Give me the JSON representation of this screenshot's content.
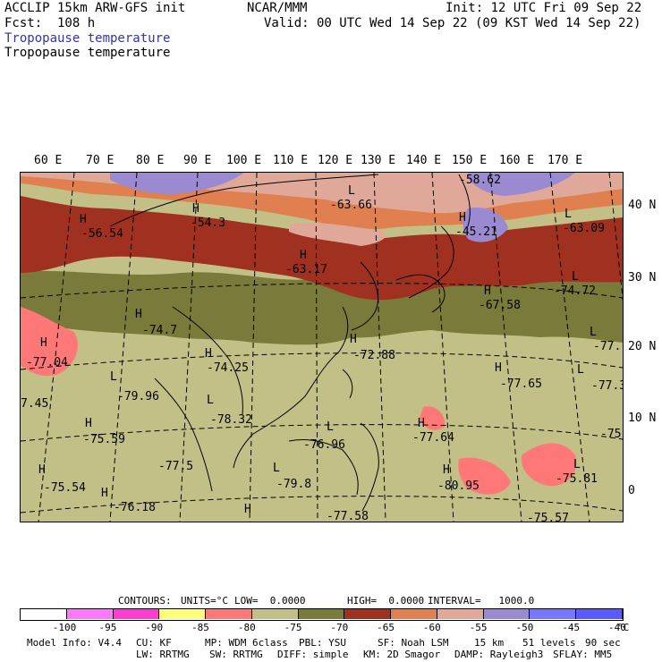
{
  "header": {
    "model_line": "ACCLIP 15km ARW-GFS init",
    "fcst_line": "Fcst:  108 h",
    "center": "NCAR/MMM",
    "init": "Init: 12 UTC Fri 09 Sep 22",
    "valid": "Valid: 00 UTC Wed 14 Sep 22 (09 KST Wed 14 Sep 22)",
    "field_shaded": "Tropopause temperature",
    "field_contour": "Tropopause temperature"
  },
  "map": {
    "lon_labels": [
      "60 E",
      "70 E",
      "80 E",
      "90 E",
      "100 E",
      "110 E",
      "120 E",
      "130 E",
      "140 E",
      "150 E",
      "160 E",
      "170 E"
    ],
    "lat_labels": [
      "40 N",
      "30 N",
      "20 N",
      "10 N",
      "0"
    ],
    "pressure_centers": [
      {
        "type": "H",
        "value": "-56.54"
      },
      {
        "type": "H",
        "value": "-54.3"
      },
      {
        "type": "L",
        "value": "-63.66"
      },
      {
        "type": "",
        "value": "-58.62"
      },
      {
        "type": "H",
        "value": "-45.21"
      },
      {
        "type": "L",
        "value": "-63.09"
      },
      {
        "type": "H",
        "value": "-63.17"
      },
      {
        "type": "H",
        "value": "-67.58"
      },
      {
        "type": "L",
        "value": "-74.72"
      },
      {
        "type": "H",
        "value": "-74.7"
      },
      {
        "type": "H",
        "value": "-77.04"
      },
      {
        "type": "H",
        "value": "-74.25"
      },
      {
        "type": "H",
        "value": "-72.88"
      },
      {
        "type": "L",
        "value": "-77."
      },
      {
        "type": "L",
        "value": "-79.96"
      },
      {
        "type": "H",
        "value": "-77.65"
      },
      {
        "type": "L",
        "value": "-77.3"
      },
      {
        "type": "",
        "value": "7.45"
      },
      {
        "type": "L",
        "value": "-78.32"
      },
      {
        "type": "H",
        "value": "-75.59"
      },
      {
        "type": "L",
        "value": "-76.96"
      },
      {
        "type": "H",
        "value": "-77.64"
      },
      {
        "type": "",
        "value": "-75"
      },
      {
        "type": "",
        "value": "-77.5"
      },
      {
        "type": "H",
        "value": "-75.54"
      },
      {
        "type": "L",
        "value": "-79.8"
      },
      {
        "type": "H",
        "value": "-80.95"
      },
      {
        "type": "L",
        "value": "-75.81"
      },
      {
        "type": "H",
        "value": "-76.18"
      },
      {
        "type": "H",
        "value": "-77.58"
      },
      {
        "type": "",
        "value": "-75.57"
      }
    ]
  },
  "contours_line": {
    "contours": "CONTOURS:",
    "units": "UNITS=°C",
    "low": "LOW=  0.0000",
    "high": "HIGH=  0.0000",
    "interval": "INTERVAL=   1000.0"
  },
  "colorbar": {
    "colors": [
      "#ffffff",
      "#ff78ff",
      "#ff3cd2",
      "#ffff78",
      "#ff7878",
      "#c2c087",
      "#7a7a3a",
      "#a03020",
      "#e08050",
      "#e0a898",
      "#9a8ad2",
      "#7878ff",
      "#5a5aff"
    ],
    "tick_labels": [
      "-100",
      "-95",
      "-90",
      "-85",
      "-80",
      "-75",
      "-70",
      "-65",
      "-60",
      "-55",
      "-50",
      "-45",
      "-40"
    ],
    "unit": "°C"
  },
  "footer": {
    "line1": [
      "Model Info: V4.4",
      "CU: KF",
      "MP: WDM 6class",
      "PBL: YSU",
      "SF: Noah LSM",
      "15 km",
      "51 levels",
      "90 sec"
    ],
    "line2": [
      "LW: RRTMG",
      "SW: RRTMG",
      "DIFF: simple",
      "KM: 2D Smagor",
      "DAMP: Rayleigh3",
      "SFLAY: MM5"
    ]
  }
}
